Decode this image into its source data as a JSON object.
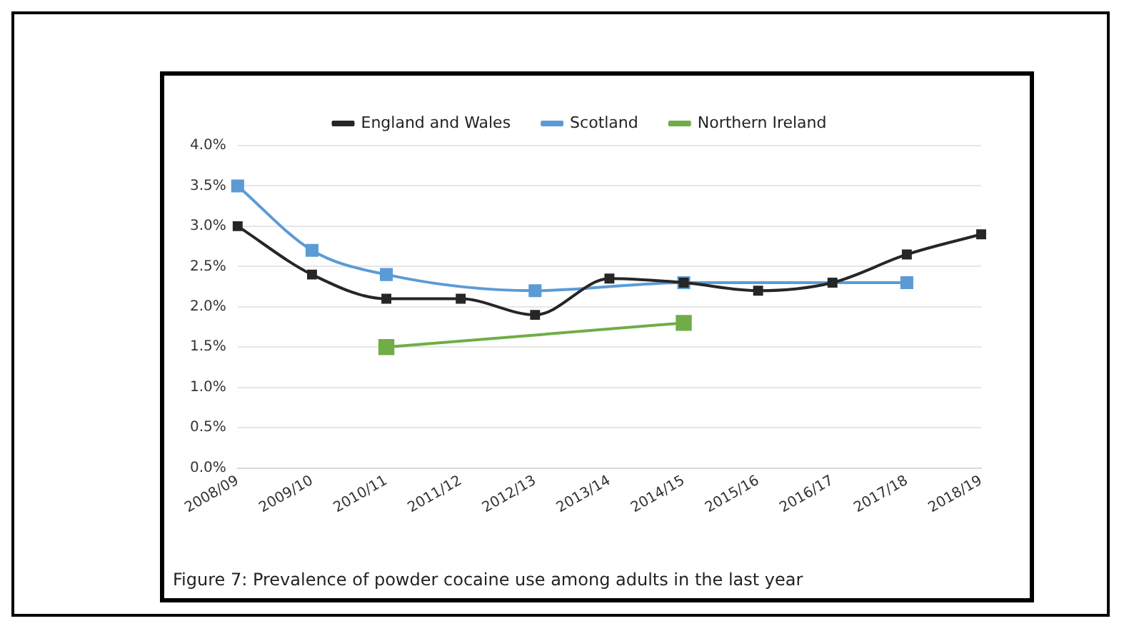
{
  "chart_data": {
    "type": "line",
    "categories": [
      "2008/09",
      "2009/10",
      "2010/11",
      "2011/12",
      "2012/13",
      "2013/14",
      "2014/15",
      "2015/16",
      "2016/17",
      "2017/18",
      "2018/19"
    ],
    "series": [
      {
        "name": "England and Wales",
        "color": "#262626",
        "values": [
          3.0,
          2.4,
          2.1,
          2.1,
          1.9,
          2.35,
          2.3,
          2.2,
          2.3,
          2.65,
          2.9
        ]
      },
      {
        "name": "Scotland",
        "color": "#5b9bd5",
        "values": [
          3.5,
          2.7,
          2.4,
          null,
          2.2,
          null,
          2.3,
          null,
          null,
          2.3,
          null
        ]
      },
      {
        "name": "Northern Ireland",
        "color": "#70ad47",
        "values": [
          null,
          null,
          1.5,
          null,
          null,
          null,
          1.8,
          null,
          null,
          null,
          null
        ]
      }
    ],
    "ylim": [
      0,
      4
    ],
    "yticks": [
      {
        "value": 0,
        "label": "0.0%"
      },
      {
        "value": 0.5,
        "label": "0.5%"
      },
      {
        "value": 1,
        "label": "1.0%"
      },
      {
        "value": 1.5,
        "label": "1.5%"
      },
      {
        "value": 2,
        "label": "2.0%"
      },
      {
        "value": 2.5,
        "label": "2.5%"
      },
      {
        "value": 3,
        "label": "3.0%"
      },
      {
        "value": 3.5,
        "label": "3.5%"
      },
      {
        "value": 4,
        "label": "4.0%"
      }
    ],
    "grid": "y",
    "legend": "top",
    "marker": "square",
    "line_style": "solid",
    "annotations": [
      "Figure 7: Prevalence of powder cocaine use among adults in the last year"
    ]
  }
}
